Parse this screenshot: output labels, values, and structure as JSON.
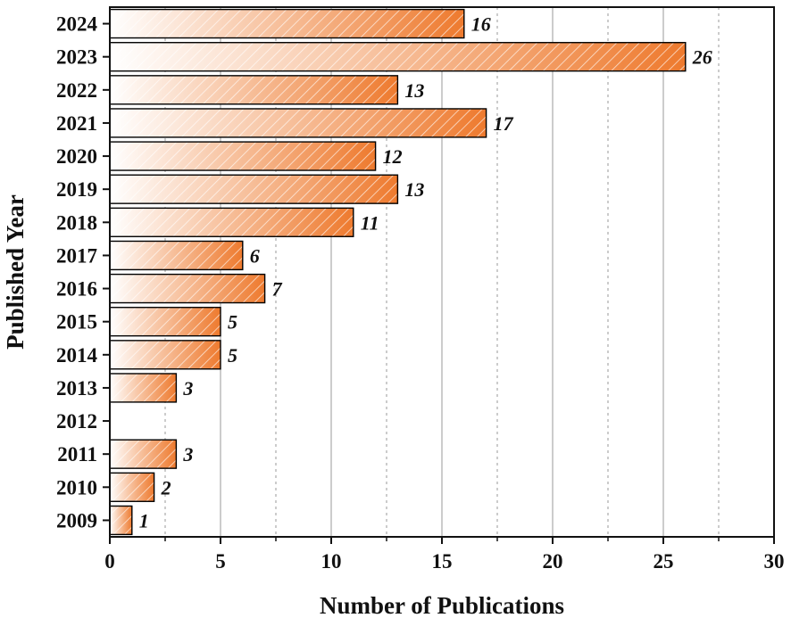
{
  "chart_data": {
    "type": "bar",
    "orientation": "horizontal",
    "categories": [
      "2024",
      "2023",
      "2022",
      "2021",
      "2020",
      "2019",
      "2018",
      "2017",
      "2016",
      "2015",
      "2014",
      "2013",
      "2012",
      "2011",
      "2010",
      "2009"
    ],
    "values": [
      16,
      26,
      13,
      17,
      12,
      13,
      11,
      6,
      7,
      5,
      5,
      3,
      0,
      3,
      2,
      1
    ],
    "data_labels": [
      "16",
      "26",
      "13",
      "17",
      "12",
      "13",
      "11",
      "6",
      "7",
      "5",
      "5",
      "3",
      "",
      "3",
      "2",
      "1"
    ],
    "xlabel": "Number of Publications",
    "ylabel": "Published Year",
    "xlim": [
      0,
      30
    ],
    "xticks": [
      0,
      5,
      10,
      15,
      20,
      25,
      30
    ],
    "xtick_labels": [
      "0",
      "5",
      "10",
      "15",
      "20",
      "25",
      "30"
    ],
    "grid": "vertical major solid, minor dashed",
    "bar_fill": "gradient white to orange with diagonal hatch",
    "colors": {
      "bar_end": "#ee7a2e",
      "bar_start": "#ffffff",
      "hatch": "#ffffff",
      "outline": "#000000",
      "grid": "#9a9a9a"
    }
  }
}
